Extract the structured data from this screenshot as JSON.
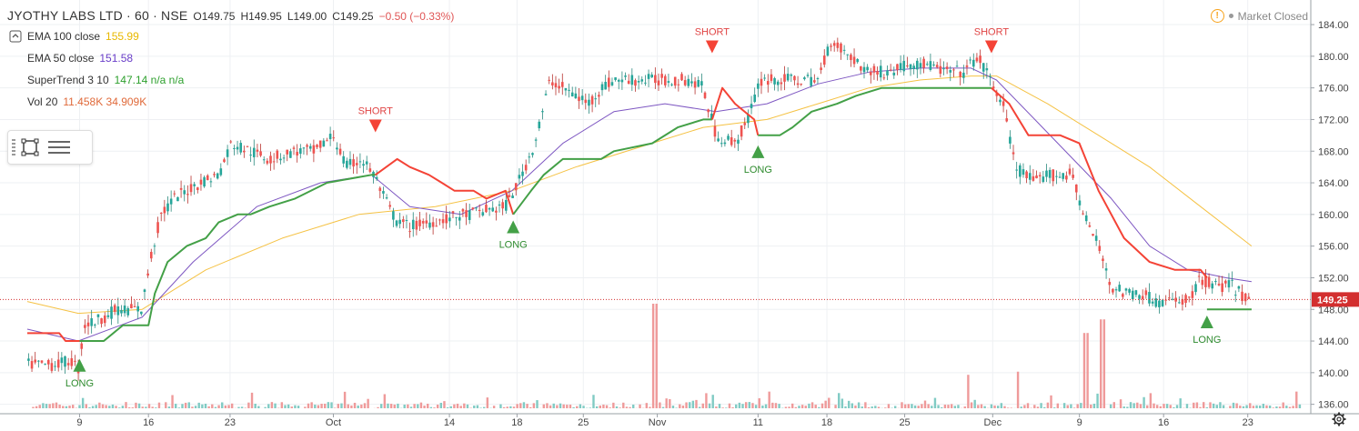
{
  "header": {
    "symbol": "JYOTHY LABS LTD · 60 · NSE",
    "open": "O149.75",
    "high": "H149.95",
    "low": "L149.00",
    "close": "C149.25",
    "change": "−0.50 (−0.33%)"
  },
  "legend": [
    {
      "label": "EMA 100 close",
      "value": "155.99",
      "color": "#e8b800"
    },
    {
      "label": "EMA 50 close",
      "value": "151.58",
      "color": "#6a3fc9"
    },
    {
      "label": "SuperTrend 3 10",
      "value": "147.14  n/a  n/a",
      "color": "#2ea02e"
    },
    {
      "label": "Vol 20",
      "value": "11.458K  34.909K",
      "color": "#e06a3a"
    }
  ],
  "status": {
    "text": "Market Closed"
  },
  "price_label": "149.25",
  "colors": {
    "up": "#26a69a",
    "down": "#ef5350",
    "st_up": "#43a047",
    "st_down": "#f44336",
    "ema100": "#f5c244",
    "ema50": "#7e57c2",
    "vol_up": "#80cbc4",
    "vol_down": "#ef9a9a",
    "price_line": "#d32f2f"
  },
  "chart_data": {
    "type": "candlestick",
    "ylim": [
      135.5,
      185.5
    ],
    "yticks": [
      136,
      140,
      144,
      148,
      152,
      156,
      160,
      164,
      168,
      172,
      176,
      180,
      184
    ],
    "xlim": [
      0,
      1000
    ],
    "xticks": [
      {
        "label": "9",
        "x": 41
      },
      {
        "label": "16",
        "x": 95
      },
      {
        "label": "23",
        "x": 159
      },
      {
        "label": "Oct",
        "x": 240
      },
      {
        "label": "14",
        "x": 331
      },
      {
        "label": "18",
        "x": 384
      },
      {
        "label": "25",
        "x": 436
      },
      {
        "label": "Nov",
        "x": 494
      },
      {
        "label": "11",
        "x": 573
      },
      {
        "label": "18",
        "x": 627
      },
      {
        "label": "25",
        "x": 688
      },
      {
        "label": "Dec",
        "x": 757
      },
      {
        "label": "9",
        "x": 825
      },
      {
        "label": "16",
        "x": 891
      },
      {
        "label": "23",
        "x": 957
      }
    ],
    "close_path": [
      [
        0,
        141
      ],
      [
        20,
        141
      ],
      [
        35,
        141.5
      ],
      [
        40,
        140.5
      ],
      [
        45,
        146
      ],
      [
        60,
        147
      ],
      [
        70,
        148
      ],
      [
        80,
        148
      ],
      [
        90,
        148
      ],
      [
        96,
        154
      ],
      [
        105,
        160
      ],
      [
        115,
        162
      ],
      [
        125,
        163
      ],
      [
        135,
        164
      ],
      [
        150,
        165
      ],
      [
        160,
        169
      ],
      [
        175,
        168
      ],
      [
        190,
        167
      ],
      [
        210,
        168
      ],
      [
        225,
        168
      ],
      [
        240,
        170
      ],
      [
        250,
        166
      ],
      [
        262,
        167
      ],
      [
        272,
        165
      ],
      [
        280,
        162
      ],
      [
        290,
        159
      ],
      [
        300,
        158.5
      ],
      [
        315,
        159
      ],
      [
        330,
        159.5
      ],
      [
        345,
        160
      ],
      [
        360,
        160.5
      ],
      [
        375,
        161
      ],
      [
        385,
        164
      ],
      [
        398,
        169
      ],
      [
        410,
        177
      ],
      [
        420,
        176
      ],
      [
        430,
        175
      ],
      [
        440,
        174
      ],
      [
        450,
        176
      ],
      [
        460,
        177
      ],
      [
        475,
        177
      ],
      [
        490,
        177
      ],
      [
        505,
        177
      ],
      [
        520,
        177
      ],
      [
        530,
        176
      ],
      [
        540,
        170
      ],
      [
        555,
        169
      ],
      [
        565,
        172
      ],
      [
        575,
        177
      ],
      [
        590,
        177
      ],
      [
        605,
        177
      ],
      [
        620,
        177
      ],
      [
        630,
        182
      ],
      [
        645,
        180
      ],
      [
        660,
        178
      ],
      [
        675,
        178
      ],
      [
        690,
        179
      ],
      [
        705,
        179
      ],
      [
        720,
        178
      ],
      [
        735,
        178
      ],
      [
        745,
        180
      ],
      [
        755,
        177
      ],
      [
        765,
        174
      ],
      [
        775,
        166
      ],
      [
        790,
        164
      ],
      [
        800,
        165
      ],
      [
        810,
        165
      ],
      [
        820,
        165
      ],
      [
        828,
        160
      ],
      [
        840,
        156
      ],
      [
        850,
        151
      ],
      [
        860,
        150
      ],
      [
        875,
        150
      ],
      [
        885,
        149
      ],
      [
        895,
        149
      ],
      [
        905,
        149
      ],
      [
        915,
        150
      ],
      [
        920,
        152
      ],
      [
        930,
        151
      ],
      [
        945,
        151
      ],
      [
        955,
        149.3
      ]
    ],
    "series": [
      {
        "name": "EMA 100 close",
        "values": [
          [
            0,
            149
          ],
          [
            40,
            147.5
          ],
          [
            90,
            148
          ],
          [
            140,
            153
          ],
          [
            200,
            157
          ],
          [
            260,
            160
          ],
          [
            320,
            161
          ],
          [
            380,
            163
          ],
          [
            430,
            166
          ],
          [
            480,
            168.5
          ],
          [
            530,
            171
          ],
          [
            580,
            172
          ],
          [
            620,
            174
          ],
          [
            660,
            176
          ],
          [
            700,
            177
          ],
          [
            740,
            177.5
          ],
          [
            760,
            177.5
          ],
          [
            800,
            174
          ],
          [
            840,
            170
          ],
          [
            880,
            166
          ],
          [
            920,
            161
          ],
          [
            960,
            156
          ]
        ]
      },
      {
        "name": "EMA 50 close",
        "values": [
          [
            0,
            145.5
          ],
          [
            40,
            144
          ],
          [
            90,
            147
          ],
          [
            130,
            154
          ],
          [
            180,
            161
          ],
          [
            230,
            164
          ],
          [
            270,
            165
          ],
          [
            300,
            161
          ],
          [
            340,
            160
          ],
          [
            380,
            163
          ],
          [
            420,
            169
          ],
          [
            460,
            173
          ],
          [
            500,
            174
          ],
          [
            540,
            173
          ],
          [
            580,
            174
          ],
          [
            620,
            176.5
          ],
          [
            660,
            178
          ],
          [
            700,
            178.5
          ],
          [
            740,
            178.5
          ],
          [
            760,
            177
          ],
          [
            790,
            172
          ],
          [
            820,
            167
          ],
          [
            850,
            162
          ],
          [
            880,
            156
          ],
          [
            910,
            153
          ],
          [
            940,
            152
          ],
          [
            960,
            151.5
          ]
        ]
      },
      {
        "name": "SuperTrend 3 10",
        "segments": [
          {
            "trend": "down",
            "values": [
              [
                0,
                145
              ],
              [
                25,
                145
              ],
              [
                30,
                144
              ],
              [
                41,
                144
              ]
            ]
          },
          {
            "trend": "up",
            "values": [
              [
                41,
                144
              ],
              [
                60,
                144
              ],
              [
                75,
                146
              ],
              [
                95,
                146
              ],
              [
                100,
                150
              ],
              [
                110,
                154
              ],
              [
                125,
                156
              ],
              [
                140,
                157
              ],
              [
                150,
                159
              ],
              [
                165,
                160
              ],
              [
                175,
                160
              ],
              [
                190,
                161
              ],
              [
                210,
                162
              ],
              [
                235,
                164
              ],
              [
                270,
                165
              ],
              [
                273,
                165
              ]
            ]
          },
          {
            "trend": "down",
            "values": [
              [
                273,
                165
              ],
              [
                290,
                167
              ],
              [
                300,
                166
              ],
              [
                315,
                165
              ],
              [
                325,
                164
              ],
              [
                335,
                163
              ],
              [
                350,
                163
              ],
              [
                360,
                162
              ],
              [
                375,
                163
              ],
              [
                381,
                160
              ]
            ]
          },
          {
            "trend": "up",
            "values": [
              [
                381,
                160
              ],
              [
                395,
                163
              ],
              [
                405,
                165
              ],
              [
                420,
                167
              ],
              [
                450,
                167
              ],
              [
                460,
                168
              ],
              [
                490,
                169
              ],
              [
                510,
                171
              ],
              [
                530,
                172
              ],
              [
                537,
                172
              ]
            ]
          },
          {
            "trend": "down",
            "values": [
              [
                537,
                172
              ],
              [
                545,
                176
              ],
              [
                555,
                174
              ],
              [
                570,
                172
              ],
              [
                573,
                170
              ]
            ]
          },
          {
            "trend": "up",
            "values": [
              [
                573,
                170
              ],
              [
                590,
                170
              ],
              [
                600,
                171
              ],
              [
                615,
                173
              ],
              [
                635,
                174
              ],
              [
                650,
                175
              ],
              [
                670,
                176
              ],
              [
                690,
                176
              ],
              [
                710,
                176
              ],
              [
                740,
                176
              ],
              [
                756,
                176
              ]
            ]
          },
          {
            "trend": "down",
            "values": [
              [
                756,
                176
              ],
              [
                770,
                174
              ],
              [
                785,
                170
              ],
              [
                810,
                170
              ],
              [
                825,
                169
              ],
              [
                840,
                163
              ],
              [
                860,
                157
              ],
              [
                880,
                154
              ],
              [
                900,
                153
              ],
              [
                920,
                153
              ],
              [
                925,
                152
              ]
            ]
          },
          {
            "trend": "up",
            "values": [
              [
                925,
                148
              ],
              [
                960,
                148
              ]
            ]
          }
        ]
      }
    ],
    "signals": [
      {
        "type": "LONG",
        "x": 41,
        "price": 141.5
      },
      {
        "type": "SHORT",
        "x": 273,
        "price": 170.5
      },
      {
        "type": "LONG",
        "x": 381,
        "price": 159
      },
      {
        "type": "SHORT",
        "x": 537,
        "price": 180.5
      },
      {
        "type": "LONG",
        "x": 573,
        "price": 168.5
      },
      {
        "type": "SHORT",
        "x": 756,
        "price": 180.5
      },
      {
        "type": "LONG",
        "x": 925,
        "price": 147
      }
    ],
    "volume_spikes": [
      {
        "x": 492,
        "value": 1.0,
        "dir": "down"
      },
      {
        "x": 843,
        "value": 0.85,
        "dir": "down"
      },
      {
        "x": 830,
        "value": 0.72,
        "dir": "down"
      },
      {
        "x": 738,
        "value": 0.32,
        "dir": "down"
      },
      {
        "x": 776,
        "value": 0.35,
        "dir": "down"
      },
      {
        "x": 840,
        "value": 0.14,
        "dir": "up"
      }
    ],
    "last_price": 149.25
  }
}
